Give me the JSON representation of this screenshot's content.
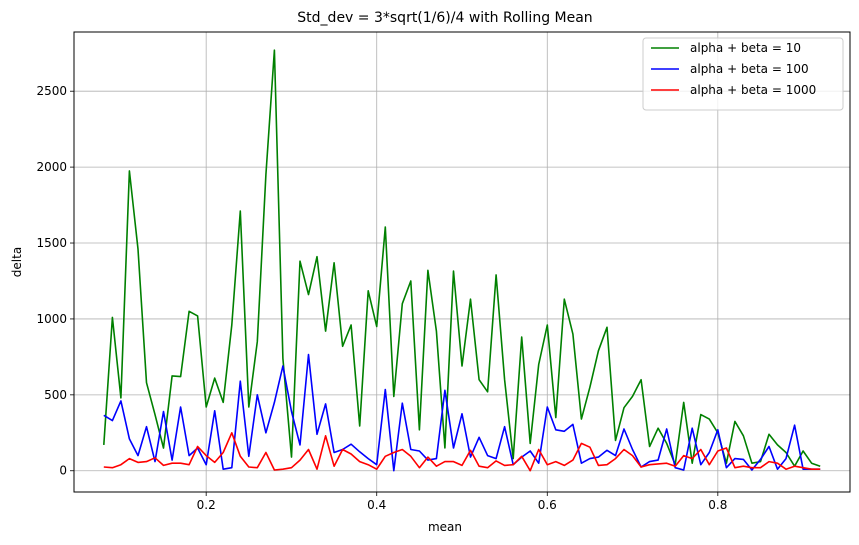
{
  "chart_data": {
    "type": "line",
    "title": "Std_dev = 3*sqrt(1/6)/4 with Rolling Mean",
    "xlabel": "mean",
    "ylabel": "delta",
    "xlim": [
      0.045,
      0.955
    ],
    "ylim": [
      -140,
      2890
    ],
    "xticks": [
      0.2,
      0.4,
      0.6,
      0.8
    ],
    "xtick_labels": [
      "0.2",
      "0.4",
      "0.6",
      "0.8"
    ],
    "yticks": [
      0,
      500,
      1000,
      1500,
      2000,
      2500
    ],
    "ytick_labels": [
      "0",
      "500",
      "1000",
      "1500",
      "2000",
      "2500"
    ],
    "grid": true,
    "legend_position": "top-right",
    "x": [
      0.08,
      0.09,
      0.1,
      0.11,
      0.12,
      0.13,
      0.14,
      0.15,
      0.16,
      0.17,
      0.18,
      0.19,
      0.2,
      0.21,
      0.22,
      0.23,
      0.24,
      0.25,
      0.26,
      0.27,
      0.28,
      0.29,
      0.3,
      0.31,
      0.32,
      0.33,
      0.34,
      0.35,
      0.36,
      0.37,
      0.38,
      0.39,
      0.4,
      0.41,
      0.42,
      0.43,
      0.44,
      0.45,
      0.46,
      0.47,
      0.48,
      0.49,
      0.5,
      0.51,
      0.52,
      0.53,
      0.54,
      0.55,
      0.56,
      0.57,
      0.58,
      0.59,
      0.6,
      0.61,
      0.62,
      0.63,
      0.64,
      0.65,
      0.66,
      0.67,
      0.68,
      0.69,
      0.7,
      0.71,
      0.72,
      0.73,
      0.74,
      0.75,
      0.76,
      0.77,
      0.78,
      0.79,
      0.8,
      0.81,
      0.82,
      0.83,
      0.84,
      0.85,
      0.86,
      0.87,
      0.88,
      0.89,
      0.9,
      0.91,
      0.92
    ],
    "series": [
      {
        "name": "alpha + beta = 10",
        "color": "#008000",
        "values": [
          170,
          1010,
          480,
          1975,
          1460,
          580,
          370,
          150,
          625,
          620,
          1050,
          1020,
          420,
          610,
          450,
          960,
          1710,
          420,
          850,
          1950,
          2770,
          740,
          90,
          1380,
          1160,
          1410,
          920,
          1370,
          820,
          960,
          295,
          1185,
          950,
          1605,
          490,
          1100,
          1250,
          270,
          1320,
          920,
          150,
          1315,
          690,
          1130,
          600,
          520,
          1290,
          600,
          80,
          880,
          180,
          700,
          960,
          350,
          1130,
          900,
          340,
          550,
          790,
          945,
          200,
          415,
          490,
          600,
          160,
          280,
          180,
          40,
          450,
          50,
          370,
          340,
          250,
          50,
          325,
          230,
          50,
          60,
          240,
          170,
          120,
          30,
          130,
          50,
          30
        ]
      },
      {
        "name": "alpha + beta = 100",
        "color": "#0000ff",
        "values": [
          365,
          330,
          460,
          210,
          100,
          290,
          60,
          390,
          70,
          420,
          100,
          150,
          40,
          395,
          10,
          20,
          590,
          95,
          500,
          250,
          450,
          690,
          390,
          170,
          765,
          240,
          440,
          120,
          140,
          175,
          125,
          80,
          40,
          535,
          0,
          445,
          140,
          130,
          70,
          80,
          530,
          150,
          375,
          90,
          220,
          100,
          80,
          290,
          40,
          90,
          130,
          50,
          420,
          270,
          260,
          305,
          50,
          80,
          90,
          135,
          100,
          275,
          140,
          25,
          60,
          70,
          275,
          20,
          5,
          280,
          40,
          120,
          270,
          20,
          80,
          75,
          5,
          75,
          160,
          10,
          80,
          300,
          10,
          10,
          10
        ]
      },
      {
        "name": "alpha + beta = 1000",
        "color": "#ff0000",
        "values": [
          25,
          20,
          40,
          80,
          55,
          60,
          85,
          35,
          50,
          50,
          40,
          160,
          100,
          55,
          120,
          250,
          95,
          25,
          20,
          120,
          5,
          10,
          20,
          70,
          140,
          10,
          230,
          30,
          140,
          110,
          60,
          40,
          10,
          95,
          120,
          140,
          95,
          20,
          90,
          30,
          60,
          60,
          35,
          135,
          30,
          20,
          65,
          35,
          40,
          95,
          0,
          140,
          40,
          60,
          35,
          70,
          180,
          155,
          35,
          40,
          80,
          140,
          100,
          25,
          40,
          45,
          50,
          30,
          100,
          80,
          140,
          40,
          130,
          150,
          20,
          30,
          20,
          20,
          60,
          50,
          10,
          30,
          20,
          10,
          10
        ]
      }
    ]
  }
}
